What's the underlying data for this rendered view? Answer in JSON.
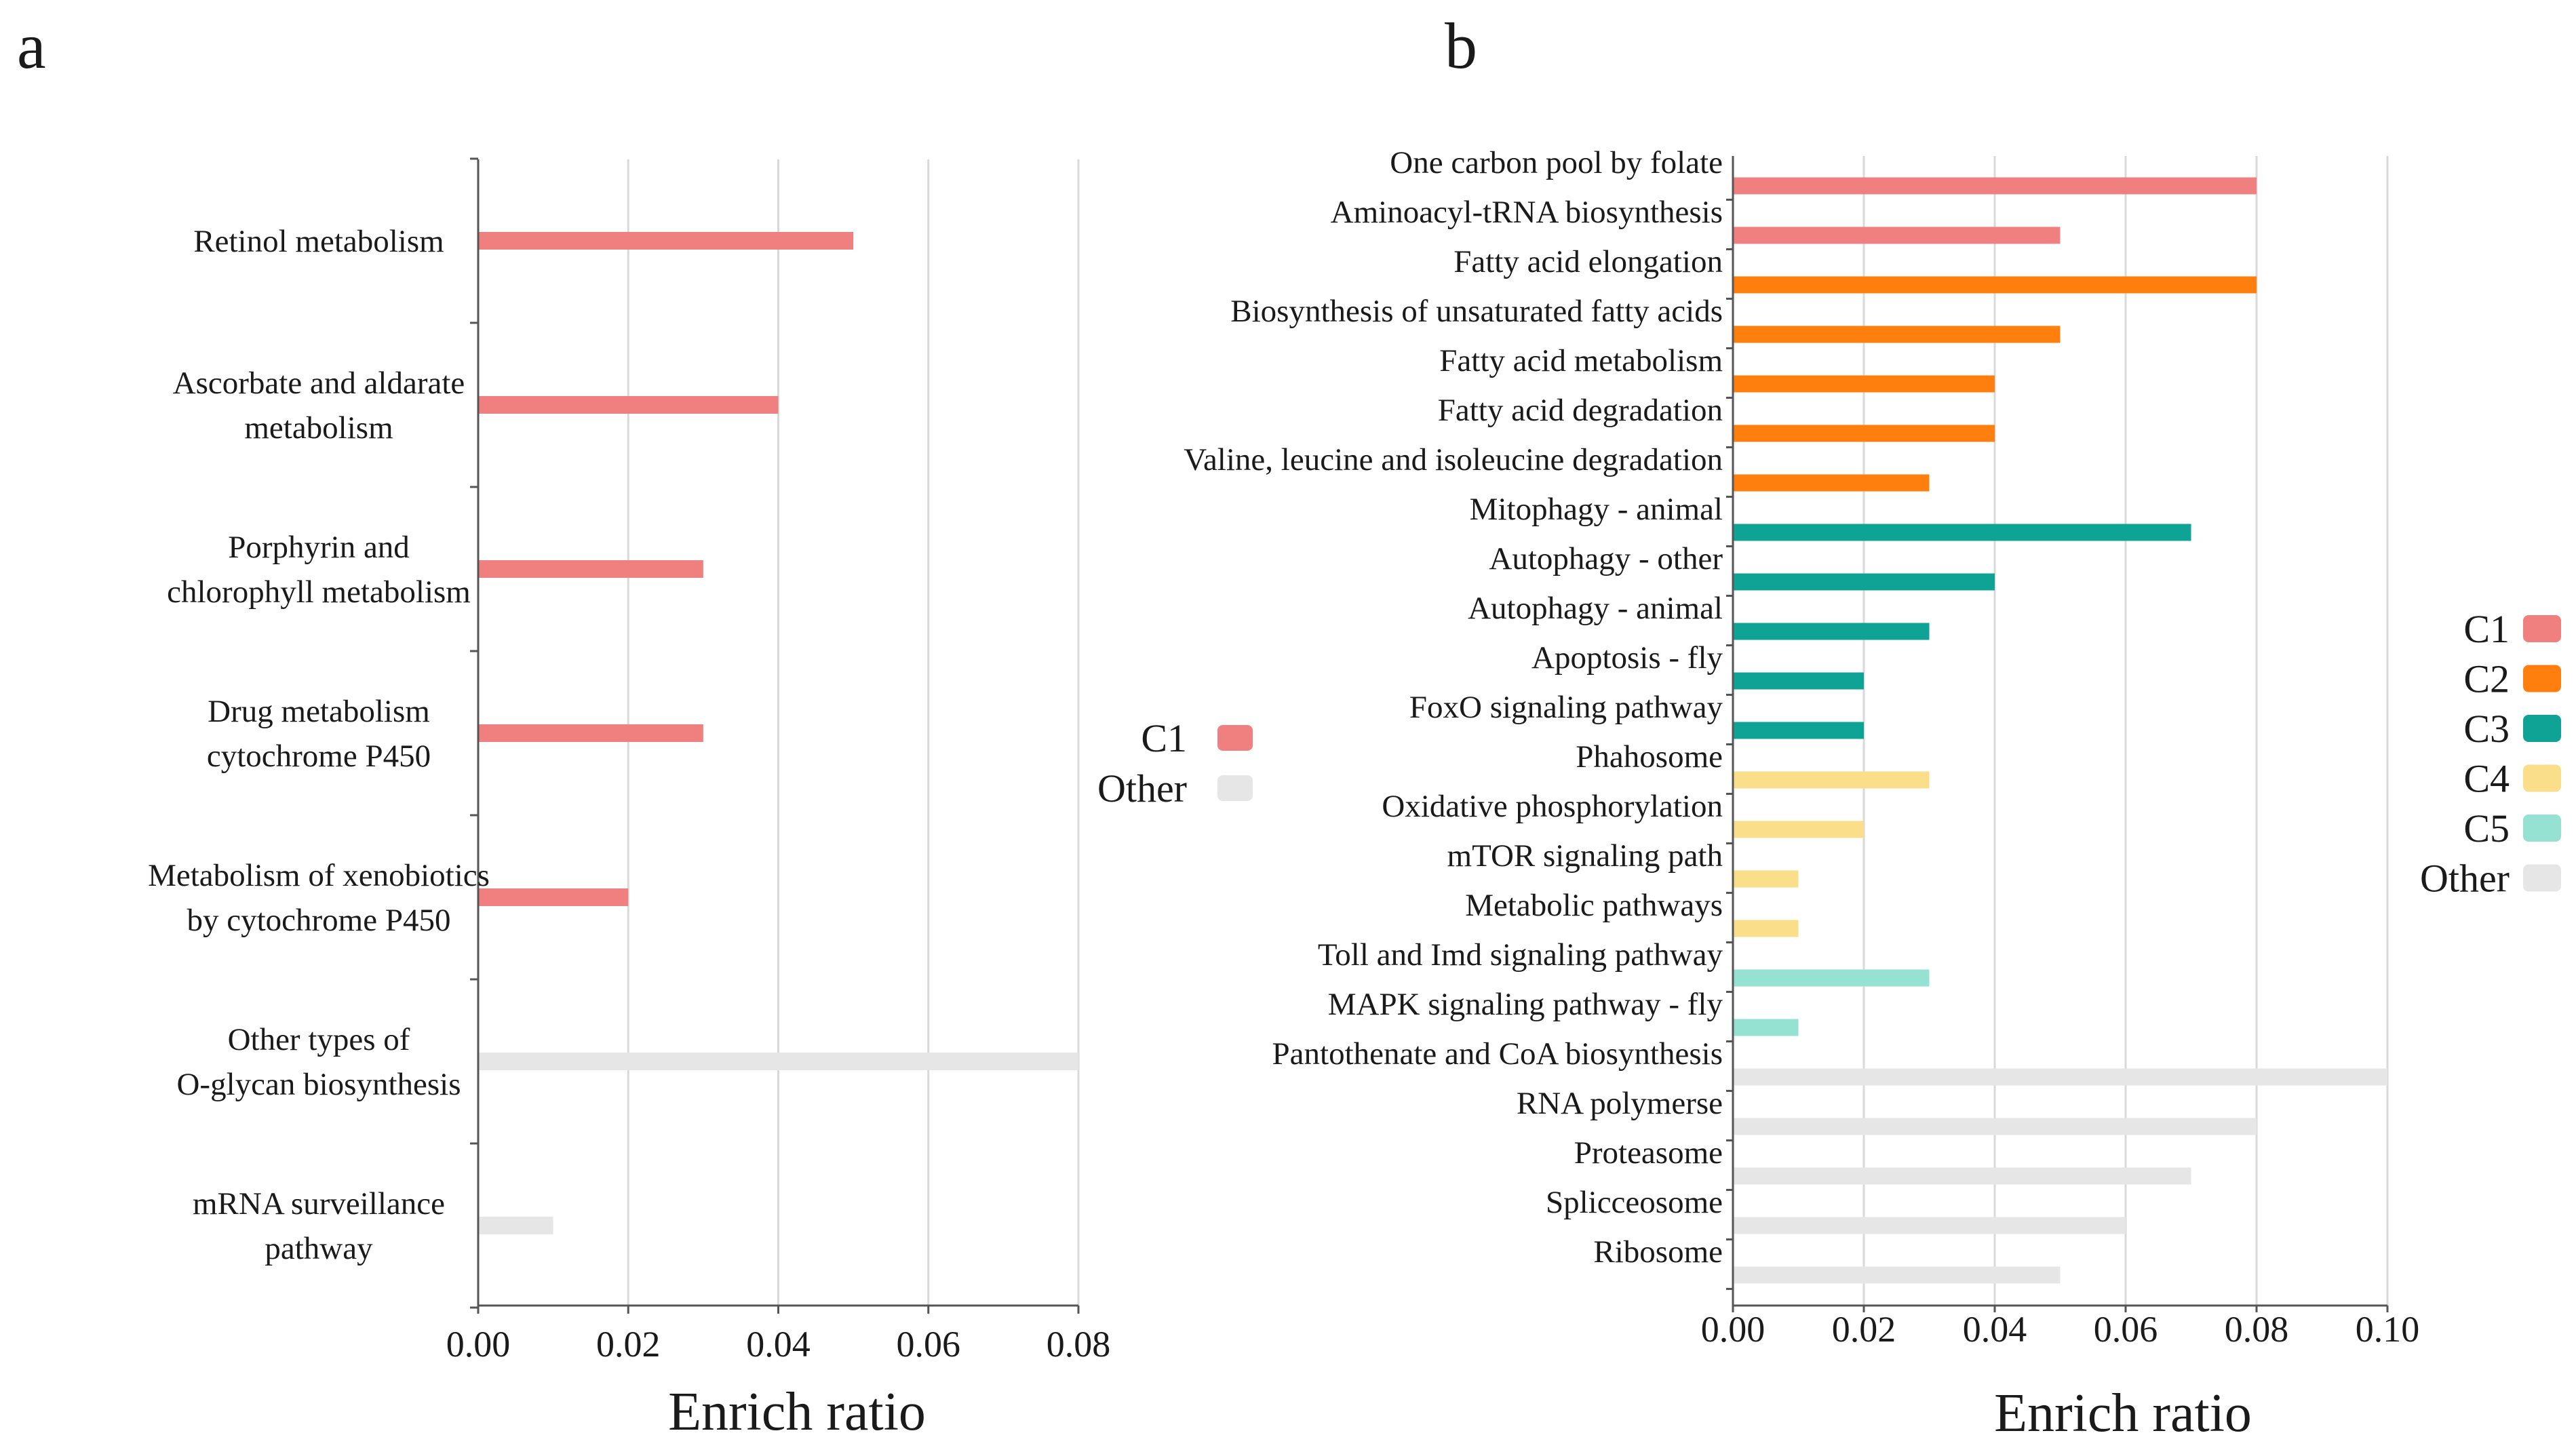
{
  "chart_data": [
    {
      "type": "bar",
      "orientation": "horizontal",
      "panel": "a",
      "xlabel": "Enrich ratio",
      "xlim": [
        0,
        0.08
      ],
      "xticks": [
        "0.00",
        "0.02",
        "0.04",
        "0.06",
        "0.08"
      ],
      "grid": true,
      "legend": {
        "position": "right",
        "entries": [
          {
            "name": "C1",
            "color": "#f08080"
          },
          {
            "name": "Other",
            "color": "#e6e6e6"
          }
        ]
      },
      "bars": [
        {
          "label": [
            "Retinol metabolism"
          ],
          "value": 0.05,
          "group": "C1"
        },
        {
          "label": [
            "Ascorbate and aldarate",
            "metabolism"
          ],
          "value": 0.04,
          "group": "C1"
        },
        {
          "label": [
            "Porphyrin and",
            "chlorophyll metabolism"
          ],
          "value": 0.03,
          "group": "C1"
        },
        {
          "label": [
            "Drug metabolism",
            "cytochrome P450"
          ],
          "value": 0.03,
          "group": "C1"
        },
        {
          "label": [
            "Metabolism of xenobiotics",
            "by cytochrome P450"
          ],
          "value": 0.02,
          "group": "C1"
        },
        {
          "label": [
            "Other types of",
            "O-glycan biosynthesis"
          ],
          "value": 0.08,
          "group": "Other"
        },
        {
          "label": [
            "mRNA surveillance",
            "pathway"
          ],
          "value": 0.01,
          "group": "Other"
        }
      ]
    },
    {
      "type": "bar",
      "orientation": "horizontal",
      "panel": "b",
      "xlabel": "Enrich ratio",
      "xlim": [
        0,
        0.1
      ],
      "xticks": [
        "0.00",
        "0.02",
        "0.04",
        "0.06",
        "0.08",
        "0.10"
      ],
      "grid": true,
      "legend": {
        "position": "right",
        "entries": [
          {
            "name": "C1",
            "color": "#f08080"
          },
          {
            "name": "C2",
            "color": "#ff7f0e"
          },
          {
            "name": "C3",
            "color": "#0fa396"
          },
          {
            "name": "C4",
            "color": "#fade8a"
          },
          {
            "name": "C5",
            "color": "#96e2d2"
          },
          {
            "name": "Other",
            "color": "#e6e6e6"
          }
        ]
      },
      "bars": [
        {
          "label": "One carbon pool by folate",
          "value": 0.08,
          "group": "C1"
        },
        {
          "label": "Aminoacyl-tRNA biosynthesis",
          "value": 0.05,
          "group": "C1"
        },
        {
          "label": "Fatty acid elongation",
          "value": 0.08,
          "group": "C2"
        },
        {
          "label": "Biosynthesis of unsaturated fatty acids",
          "value": 0.05,
          "group": "C2"
        },
        {
          "label": "Fatty acid metabolism",
          "value": 0.04,
          "group": "C2"
        },
        {
          "label": "Fatty acid degradation",
          "value": 0.04,
          "group": "C2"
        },
        {
          "label": "Valine, leucine and isoleucine degradation",
          "value": 0.03,
          "group": "C2"
        },
        {
          "label": "Mitophagy - animal",
          "value": 0.07,
          "group": "C3"
        },
        {
          "label": "Autophagy - other",
          "value": 0.04,
          "group": "C3"
        },
        {
          "label": "Autophagy - animal",
          "value": 0.03,
          "group": "C3"
        },
        {
          "label": "Apoptosis - fly",
          "value": 0.02,
          "group": "C3"
        },
        {
          "label": "FoxO signaling pathway",
          "value": 0.02,
          "group": "C3"
        },
        {
          "label": "Phahosome",
          "value": 0.03,
          "group": "C4"
        },
        {
          "label": "Oxidative phosphorylation",
          "value": 0.02,
          "group": "C4"
        },
        {
          "label": "mTOR signaling path",
          "value": 0.01,
          "group": "C4"
        },
        {
          "label": "Metabolic pathways",
          "value": 0.01,
          "group": "C4"
        },
        {
          "label": "Toll and Imd signaling pathway",
          "value": 0.03,
          "group": "C5"
        },
        {
          "label": "MAPK signaling pathway - fly",
          "value": 0.01,
          "group": "C5"
        },
        {
          "label": "Pantothenate and CoA biosynthesis",
          "value": 0.1,
          "group": "Other"
        },
        {
          "label": "RNA polymerse",
          "value": 0.08,
          "group": "Other"
        },
        {
          "label": "Proteasome",
          "value": 0.07,
          "group": "Other"
        },
        {
          "label": "Splicceosome",
          "value": 0.06,
          "group": "Other"
        },
        {
          "label": "Ribosome",
          "value": 0.05,
          "group": "Other"
        }
      ]
    }
  ]
}
